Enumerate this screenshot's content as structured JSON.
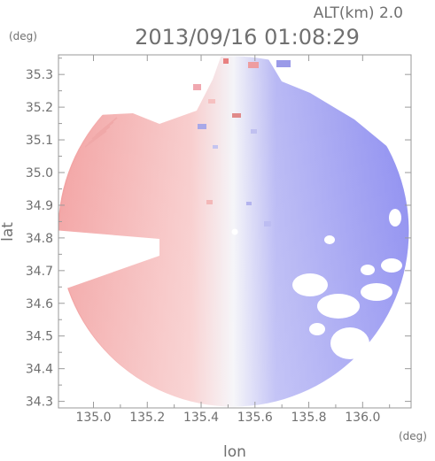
{
  "header": {
    "alt_label": "ALT(km)  2.0",
    "datetime": "2013/09/16  01:08:29",
    "y_unit": "(deg)",
    "x_unit": "(deg)"
  },
  "chart_data": {
    "type": "heatmap",
    "title": "2013/09/16  01:08:29",
    "subtitle": "ALT(km)  2.0",
    "xlabel": "lon",
    "ylabel": "lat",
    "xlim": [
      134.87,
      136.18
    ],
    "ylim": [
      34.28,
      35.36
    ],
    "x_ticks": [
      135.0,
      135.2,
      135.4,
      135.6,
      135.8,
      136.0
    ],
    "x_tick_labels": [
      "135.0",
      "135.2",
      "135.4",
      "135.6",
      "135.8",
      "136.0"
    ],
    "y_ticks": [
      34.3,
      34.4,
      34.5,
      34.6,
      34.7,
      34.8,
      34.9,
      35.0,
      35.1,
      35.2,
      35.3
    ],
    "y_tick_labels": [
      "34.3",
      "34.4",
      "34.5",
      "34.6",
      "34.7",
      "34.8",
      "34.9",
      "35.0",
      "35.1",
      "35.2",
      "35.3"
    ],
    "radar_center": [
      135.52,
      34.82
    ],
    "colors": {
      "positive": "#f2a0a0",
      "zero": "#f4f4f8",
      "negative": "#8c8cf0",
      "axis": "#9a9a9a",
      "text": "#707070"
    }
  }
}
